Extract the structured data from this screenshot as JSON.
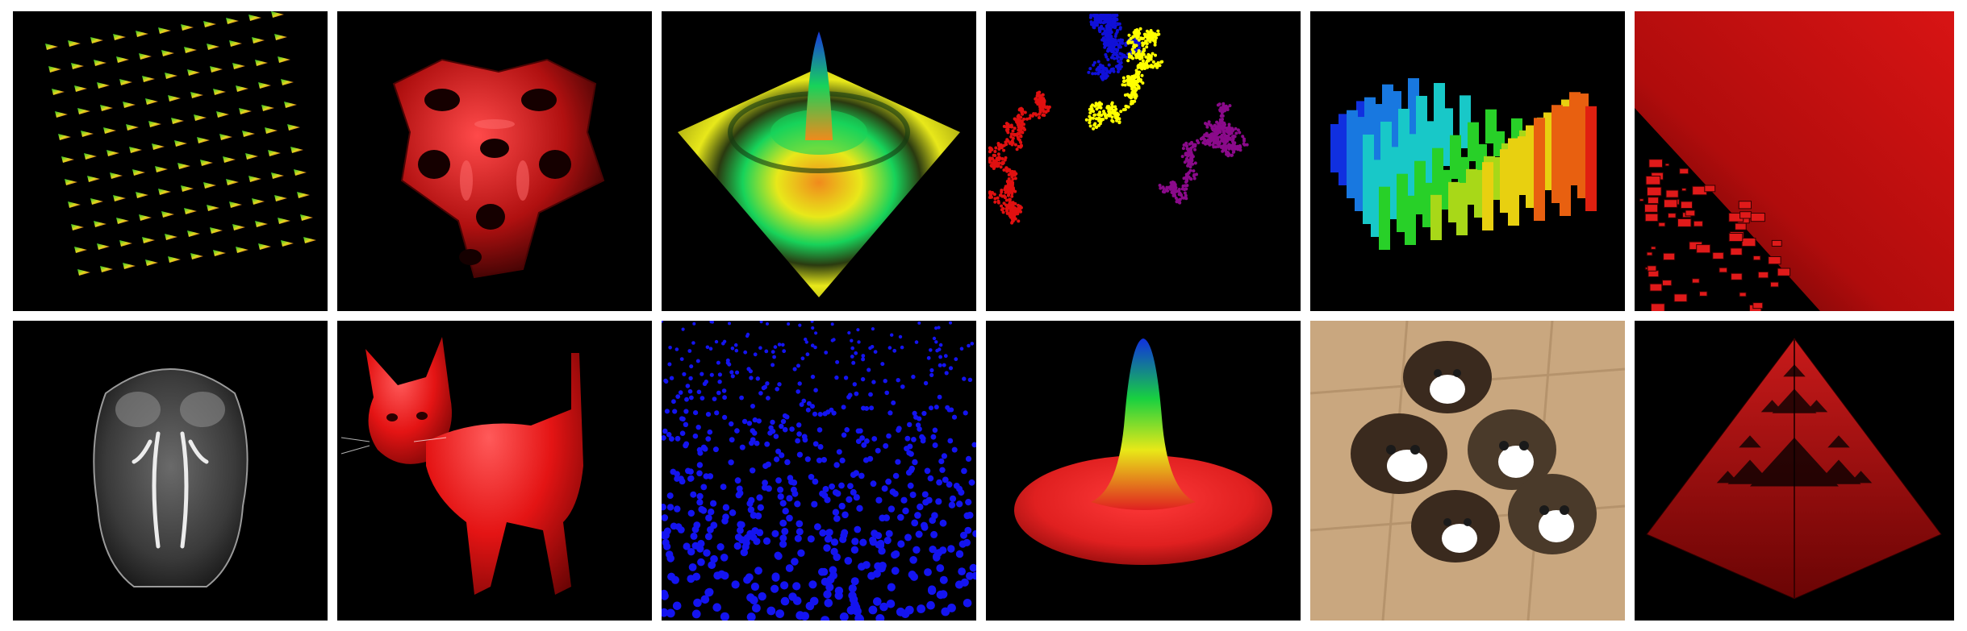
{
  "gallery": {
    "rows": 2,
    "columns": 6,
    "background": "#ffffff",
    "tile_background": "#000000",
    "tiles": [
      {
        "subject": "vector-field-cones",
        "colors": [
          "#27c427",
          "#e0d81e",
          "#d21f1f"
        ]
      },
      {
        "subject": "red-lattice-structure",
        "colors": [
          "#b01010"
        ]
      },
      {
        "subject": "surface-plot-ripple",
        "colors": [
          "#1838e0",
          "#17d35a",
          "#e8e81a",
          "#f08a1c"
        ]
      },
      {
        "subject": "random-walk-points",
        "colors": [
          "#1010d8",
          "#ffff00",
          "#e01010",
          "#8a0a8a"
        ]
      },
      {
        "subject": "3d-bar-chart",
        "colors": [
          "#1030e0",
          "#18c8c8",
          "#28d028",
          "#e8d010",
          "#e02010"
        ]
      },
      {
        "subject": "red-cube-field",
        "colors": [
          "#d01010"
        ]
      },
      {
        "subject": "mri-head-volume",
        "colors": [
          "#cfcfcf"
        ]
      },
      {
        "subject": "red-cat-model",
        "colors": [
          "#e41414"
        ]
      },
      {
        "subject": "blue-sphere-scatter",
        "colors": [
          "#1414f0"
        ]
      },
      {
        "subject": "gaussian-surface",
        "colors": [
          "#1030e0",
          "#18d040",
          "#e8e818",
          "#e02020"
        ]
      },
      {
        "subject": "kittens-photo",
        "colors": [
          "#c9a77f",
          "#3a2a1e",
          "#ffffff"
        ]
      },
      {
        "subject": "sierpinski-pyramid",
        "colors": [
          "#a01010"
        ]
      }
    ]
  }
}
